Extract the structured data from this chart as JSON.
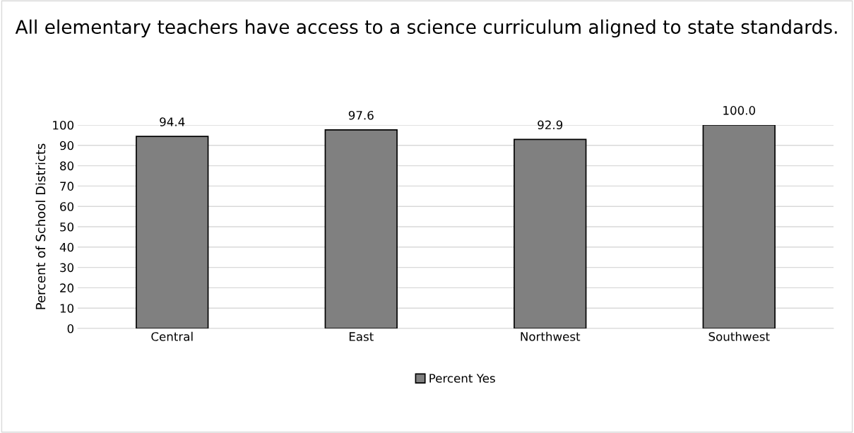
{
  "chart_data": {
    "type": "bar",
    "title": "All elementary teachers have access to a science curriculum aligned to state standards.",
    "ylabel": "Percent of School Districts",
    "categories": [
      "Central",
      "East",
      "Northwest",
      "Southwest"
    ],
    "series": [
      {
        "name": "Percent Yes",
        "color": "#808080",
        "values": [
          94.4,
          97.6,
          92.9,
          100.0
        ]
      }
    ],
    "value_labels": [
      "94.4",
      "97.6",
      "92.9",
      "100.0"
    ],
    "ylim": [
      0,
      100
    ],
    "yticks": [
      0,
      10,
      20,
      30,
      40,
      50,
      60,
      70,
      80,
      90,
      100
    ],
    "grid": "y",
    "legend": "bottom"
  }
}
